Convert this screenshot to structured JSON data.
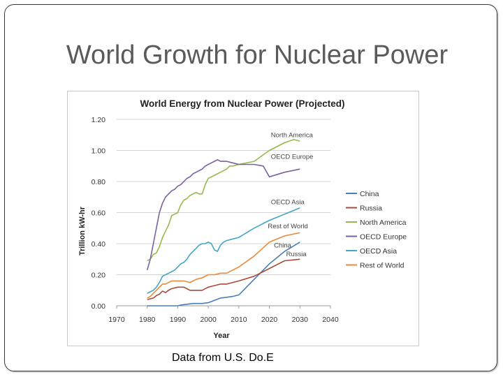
{
  "slide": {
    "title": "World Growth for Nuclear Power",
    "caption": "Data from U.S. Do.E"
  },
  "chart_data": {
    "type": "line",
    "title": "World Energy from Nuclear Power (Projected)",
    "xlabel": "Year",
    "ylabel": "Trillion kW-hr",
    "xlim": [
      1970,
      2040
    ],
    "ylim": [
      0,
      1.2
    ],
    "x_ticks": [
      "1970",
      "1980",
      "1990",
      "2000",
      "2010",
      "2020",
      "2030",
      "2040"
    ],
    "y_ticks": [
      "0.00",
      "0.20",
      "0.40",
      "0.60",
      "0.80",
      "1.00",
      "1.20"
    ],
    "grid": true,
    "legend_position": "right",
    "series": [
      {
        "name": "China",
        "color": "#4a7eb5",
        "points": [
          [
            1980,
            0.0
          ],
          [
            1990,
            0.0
          ],
          [
            1991,
            0.005
          ],
          [
            1993,
            0.01
          ],
          [
            1995,
            0.015
          ],
          [
            1998,
            0.015
          ],
          [
            2000,
            0.02
          ],
          [
            2002,
            0.035
          ],
          [
            2004,
            0.05
          ],
          [
            2006,
            0.055
          ],
          [
            2008,
            0.06
          ],
          [
            2010,
            0.07
          ],
          [
            2015,
            0.17
          ],
          [
            2020,
            0.27
          ],
          [
            2025,
            0.35
          ],
          [
            2030,
            0.41
          ]
        ]
      },
      {
        "name": "Russia",
        "color": "#a84a3e",
        "points": [
          [
            1980,
            0.04
          ],
          [
            1981,
            0.045
          ],
          [
            1982,
            0.05
          ],
          [
            1983,
            0.065
          ],
          [
            1984,
            0.075
          ],
          [
            1985,
            0.095
          ],
          [
            1986,
            0.085
          ],
          [
            1987,
            0.1
          ],
          [
            1988,
            0.11
          ],
          [
            1990,
            0.12
          ],
          [
            1992,
            0.12
          ],
          [
            1993,
            0.11
          ],
          [
            1994,
            0.1
          ],
          [
            1996,
            0.1
          ],
          [
            1998,
            0.1
          ],
          [
            2000,
            0.12
          ],
          [
            2002,
            0.13
          ],
          [
            2004,
            0.14
          ],
          [
            2006,
            0.14
          ],
          [
            2010,
            0.16
          ],
          [
            2015,
            0.19
          ],
          [
            2020,
            0.24
          ],
          [
            2025,
            0.29
          ],
          [
            2030,
            0.3
          ]
        ]
      },
      {
        "name": "North America",
        "color": "#97b84c",
        "points": [
          [
            1980,
            0.29
          ],
          [
            1981,
            0.3
          ],
          [
            1982,
            0.33
          ],
          [
            1983,
            0.34
          ],
          [
            1984,
            0.38
          ],
          [
            1985,
            0.44
          ],
          [
            1986,
            0.48
          ],
          [
            1987,
            0.52
          ],
          [
            1988,
            0.58
          ],
          [
            1989,
            0.59
          ],
          [
            1990,
            0.6
          ],
          [
            1991,
            0.65
          ],
          [
            1992,
            0.68
          ],
          [
            1993,
            0.69
          ],
          [
            1994,
            0.71
          ],
          [
            1995,
            0.72
          ],
          [
            1996,
            0.73
          ],
          [
            1997,
            0.72
          ],
          [
            1998,
            0.72
          ],
          [
            1999,
            0.78
          ],
          [
            2000,
            0.82
          ],
          [
            2001,
            0.83
          ],
          [
            2002,
            0.84
          ],
          [
            2003,
            0.85
          ],
          [
            2004,
            0.86
          ],
          [
            2005,
            0.87
          ],
          [
            2006,
            0.88
          ],
          [
            2007,
            0.9
          ],
          [
            2008,
            0.9
          ],
          [
            2010,
            0.91
          ],
          [
            2015,
            0.93
          ],
          [
            2020,
            1.0
          ],
          [
            2025,
            1.05
          ],
          [
            2028,
            1.07
          ],
          [
            2030,
            1.06
          ]
        ]
      },
      {
        "name": "OECD Europe",
        "color": "#7c60a0",
        "points": [
          [
            1980,
            0.23
          ],
          [
            1981,
            0.3
          ],
          [
            1982,
            0.4
          ],
          [
            1983,
            0.5
          ],
          [
            1984,
            0.6
          ],
          [
            1985,
            0.66
          ],
          [
            1986,
            0.7
          ],
          [
            1987,
            0.72
          ],
          [
            1988,
            0.74
          ],
          [
            1989,
            0.75
          ],
          [
            1990,
            0.77
          ],
          [
            1991,
            0.78
          ],
          [
            1992,
            0.8
          ],
          [
            1993,
            0.82
          ],
          [
            1994,
            0.83
          ],
          [
            1995,
            0.85
          ],
          [
            1996,
            0.86
          ],
          [
            1997,
            0.87
          ],
          [
            1998,
            0.88
          ],
          [
            1999,
            0.9
          ],
          [
            2000,
            0.91
          ],
          [
            2001,
            0.92
          ],
          [
            2002,
            0.93
          ],
          [
            2003,
            0.94
          ],
          [
            2004,
            0.93
          ],
          [
            2006,
            0.93
          ],
          [
            2008,
            0.92
          ],
          [
            2010,
            0.91
          ],
          [
            2015,
            0.91
          ],
          [
            2018,
            0.9
          ],
          [
            2020,
            0.83
          ],
          [
            2025,
            0.86
          ],
          [
            2030,
            0.88
          ]
        ]
      },
      {
        "name": "OECD Asia",
        "color": "#45a5c4",
        "points": [
          [
            1980,
            0.08
          ],
          [
            1981,
            0.09
          ],
          [
            1982,
            0.1
          ],
          [
            1983,
            0.12
          ],
          [
            1984,
            0.15
          ],
          [
            1985,
            0.19
          ],
          [
            1986,
            0.2
          ],
          [
            1987,
            0.21
          ],
          [
            1988,
            0.22
          ],
          [
            1989,
            0.23
          ],
          [
            1990,
            0.25
          ],
          [
            1991,
            0.27
          ],
          [
            1992,
            0.28
          ],
          [
            1993,
            0.3
          ],
          [
            1994,
            0.33
          ],
          [
            1995,
            0.35
          ],
          [
            1996,
            0.37
          ],
          [
            1997,
            0.39
          ],
          [
            1998,
            0.4
          ],
          [
            1999,
            0.4
          ],
          [
            2000,
            0.41
          ],
          [
            2001,
            0.4
          ],
          [
            2002,
            0.36
          ],
          [
            2003,
            0.35
          ],
          [
            2004,
            0.39
          ],
          [
            2005,
            0.41
          ],
          [
            2006,
            0.42
          ],
          [
            2008,
            0.43
          ],
          [
            2010,
            0.44
          ],
          [
            2015,
            0.5
          ],
          [
            2020,
            0.55
          ],
          [
            2025,
            0.59
          ],
          [
            2030,
            0.63
          ]
        ]
      },
      {
        "name": "Rest of World",
        "color": "#e88a3a",
        "points": [
          [
            1980,
            0.05
          ],
          [
            1981,
            0.06
          ],
          [
            1982,
            0.08
          ],
          [
            1983,
            0.1
          ],
          [
            1984,
            0.12
          ],
          [
            1985,
            0.14
          ],
          [
            1986,
            0.14
          ],
          [
            1987,
            0.15
          ],
          [
            1988,
            0.16
          ],
          [
            1990,
            0.16
          ],
          [
            1992,
            0.16
          ],
          [
            1994,
            0.15
          ],
          [
            1995,
            0.16
          ],
          [
            1996,
            0.17
          ],
          [
            1998,
            0.18
          ],
          [
            2000,
            0.2
          ],
          [
            2002,
            0.2
          ],
          [
            2004,
            0.21
          ],
          [
            2006,
            0.21
          ],
          [
            2008,
            0.23
          ],
          [
            2010,
            0.25
          ],
          [
            2015,
            0.32
          ],
          [
            2020,
            0.41
          ],
          [
            2025,
            0.45
          ],
          [
            2030,
            0.47
          ]
        ]
      }
    ],
    "annotations": [
      {
        "text": "North America",
        "x": 2020.5,
        "y": 1.085
      },
      {
        "text": "OECD Europe",
        "x": 2020.5,
        "y": 0.945
      },
      {
        "text": "OECD Asia",
        "x": 2020.5,
        "y": 0.655
      },
      {
        "text": "Rest of World",
        "x": 2019.5,
        "y": 0.5
      },
      {
        "text": "China",
        "x": 2021.5,
        "y": 0.375
      },
      {
        "text": "Russia",
        "x": 2025.5,
        "y": 0.32
      }
    ]
  }
}
